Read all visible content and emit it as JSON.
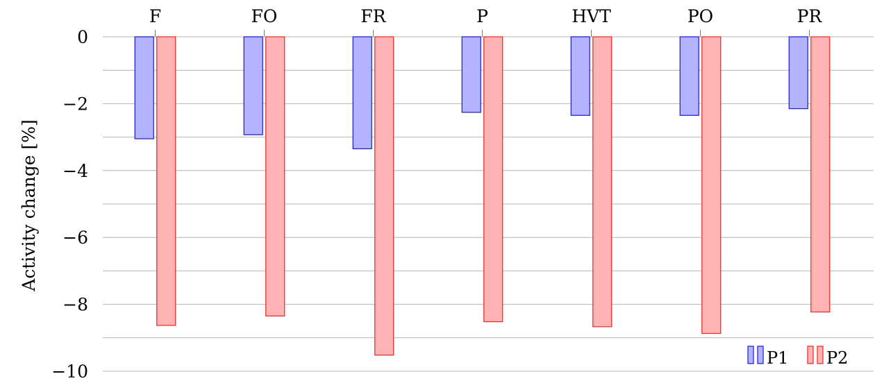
{
  "chart_data": {
    "type": "bar",
    "categories": [
      "F",
      "FO",
      "FR",
      "P",
      "HVT",
      "PO",
      "PR"
    ],
    "category_axis_position": "top",
    "ylabel": "Activity change [%]",
    "xlabel": "",
    "ylim": [
      -10,
      0
    ],
    "y_ticks": [
      0,
      -2,
      -4,
      -6,
      -8,
      -10
    ],
    "y_tick_labels": [
      "0",
      "−2",
      "−4",
      "−6",
      "−8",
      "−10"
    ],
    "grid": "horizontal",
    "legend_position": "bottom-right",
    "series": [
      {
        "name": "P1",
        "values": [
          -3.05,
          -2.93,
          -3.35,
          -2.26,
          -2.35,
          -2.35,
          -2.15
        ],
        "fill": "#b3b3ff",
        "stroke": "#1a1acc"
      },
      {
        "name": "P2",
        "values": [
          -8.63,
          -8.35,
          -9.52,
          -8.52,
          -8.67,
          -8.87,
          -8.23
        ],
        "fill": "#ffb3b3",
        "stroke": "#e62626"
      }
    ]
  }
}
